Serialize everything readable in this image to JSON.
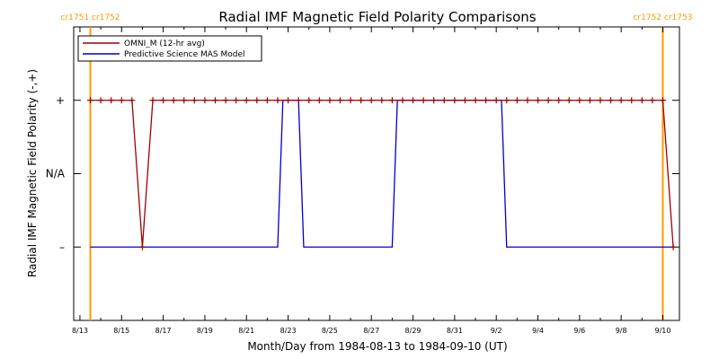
{
  "chart_data": {
    "type": "line",
    "title": "Radial IMF Magnetic Field Polarity Comparisons",
    "xlabel": "Month/Day from 1984-08-13 to 1984-09-10 (UT)",
    "ylabel": "Radial IMF Magnetic Field Polarity (-,+)",
    "x_unit": "day",
    "xlim": [
      "1984-08-13",
      "1984-09-10T12:00"
    ],
    "x_ticks": [
      "8/13",
      "8/15",
      "8/17",
      "8/19",
      "8/21",
      "8/23",
      "8/25",
      "8/27",
      "8/29",
      "8/31",
      "9/2",
      "9/4",
      "9/6",
      "9/8",
      "9/10"
    ],
    "x_tick_dates": [
      "1984-08-13",
      "1984-08-15",
      "1984-08-17",
      "1984-08-19",
      "1984-08-21",
      "1984-08-23",
      "1984-08-25",
      "1984-08-27",
      "1984-08-29",
      "1984-08-31",
      "1984-09-02",
      "1984-09-04",
      "1984-09-06",
      "1984-09-08",
      "1984-09-10"
    ],
    "ylim": [
      -2,
      2
    ],
    "y_ticks": [
      {
        "value": 1,
        "label": "+"
      },
      {
        "value": 0,
        "label": "N/A"
      },
      {
        "value": -1,
        "label": "–"
      }
    ],
    "grid": false,
    "legend_position": "top-left",
    "carrington_markers": [
      {
        "x": "1984-08-13T12:00",
        "label": "cr1751 cr1752",
        "color": "#ff9900"
      },
      {
        "x": "1984-09-10T00:00",
        "label": "cr1752 cr1753",
        "color": "#ff9900"
      }
    ],
    "series": [
      {
        "name": "OMNI_M (12-hr avg)",
        "color": "#a00000",
        "marker": "+",
        "points": [
          [
            "1984-08-13T12:00",
            1
          ],
          [
            "1984-08-14T00:00",
            1
          ],
          [
            "1984-08-14T12:00",
            1
          ],
          [
            "1984-08-15T00:00",
            1
          ],
          [
            "1984-08-15T12:00",
            1
          ],
          [
            "1984-08-16T00:00",
            -1
          ],
          [
            "1984-08-16T12:00",
            1
          ],
          [
            "1984-08-17T00:00",
            1
          ],
          [
            "1984-08-17T12:00",
            1
          ],
          [
            "1984-08-18T00:00",
            1
          ],
          [
            "1984-08-18T12:00",
            1
          ],
          [
            "1984-08-19T00:00",
            1
          ],
          [
            "1984-08-19T12:00",
            1
          ],
          [
            "1984-08-20T00:00",
            1
          ],
          [
            "1984-08-20T12:00",
            1
          ],
          [
            "1984-08-21T00:00",
            1
          ],
          [
            "1984-08-21T12:00",
            1
          ],
          [
            "1984-08-22T00:00",
            1
          ],
          [
            "1984-08-22T12:00",
            1
          ],
          [
            "1984-08-23T00:00",
            1
          ],
          [
            "1984-08-23T12:00",
            1
          ],
          [
            "1984-08-24T00:00",
            1
          ],
          [
            "1984-08-24T12:00",
            1
          ],
          [
            "1984-08-25T00:00",
            1
          ],
          [
            "1984-08-25T12:00",
            1
          ],
          [
            "1984-08-26T00:00",
            1
          ],
          [
            "1984-08-26T12:00",
            1
          ],
          [
            "1984-08-27T00:00",
            1
          ],
          [
            "1984-08-27T12:00",
            1
          ],
          [
            "1984-08-28T00:00",
            1
          ],
          [
            "1984-08-28T12:00",
            1
          ],
          [
            "1984-08-29T00:00",
            1
          ],
          [
            "1984-08-29T12:00",
            1
          ],
          [
            "1984-08-30T00:00",
            1
          ],
          [
            "1984-08-30T12:00",
            1
          ],
          [
            "1984-08-31T00:00",
            1
          ],
          [
            "1984-08-31T12:00",
            1
          ],
          [
            "1984-09-01T00:00",
            1
          ],
          [
            "1984-09-01T12:00",
            1
          ],
          [
            "1984-09-02T00:00",
            1
          ],
          [
            "1984-09-02T12:00",
            1
          ],
          [
            "1984-09-03T00:00",
            1
          ],
          [
            "1984-09-03T12:00",
            1
          ],
          [
            "1984-09-04T00:00",
            1
          ],
          [
            "1984-09-04T12:00",
            1
          ],
          [
            "1984-09-05T00:00",
            1
          ],
          [
            "1984-09-05T12:00",
            1
          ],
          [
            "1984-09-06T00:00",
            1
          ],
          [
            "1984-09-06T12:00",
            1
          ],
          [
            "1984-09-07T00:00",
            1
          ],
          [
            "1984-09-07T12:00",
            1
          ],
          [
            "1984-09-08T00:00",
            1
          ],
          [
            "1984-09-08T12:00",
            1
          ],
          [
            "1984-09-09T00:00",
            1
          ],
          [
            "1984-09-09T12:00",
            1
          ],
          [
            "1984-09-10T00:00",
            1
          ],
          [
            "1984-09-10T12:00",
            -1
          ]
        ]
      },
      {
        "name": "Predictive Science MAS Model",
        "color": "#0000cc",
        "marker": "none",
        "points": [
          [
            "1984-08-13T12:00",
            -1
          ],
          [
            "1984-08-22T12:00",
            -1
          ],
          [
            "1984-08-22T18:00",
            1
          ],
          [
            "1984-08-23T12:00",
            1
          ],
          [
            "1984-08-23T18:00",
            -1
          ],
          [
            "1984-08-28T00:00",
            -1
          ],
          [
            "1984-08-28T06:00",
            1
          ],
          [
            "1984-09-02T06:00",
            1
          ],
          [
            "1984-09-02T12:00",
            -1
          ],
          [
            "1984-09-10T12:00",
            -1
          ]
        ]
      }
    ]
  }
}
